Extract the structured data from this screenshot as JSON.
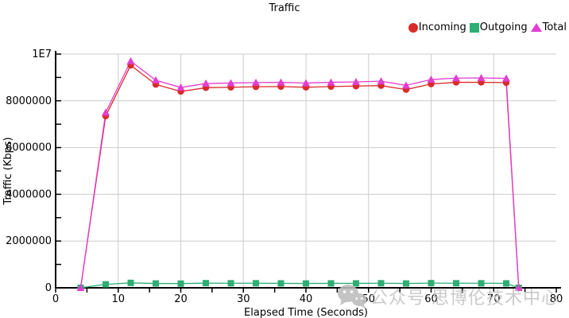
{
  "title": "Traffic",
  "watermark": {
    "text": "公众号·思博伦技术中心",
    "icon": "wechat-logo"
  },
  "chart_data": {
    "type": "line",
    "title": "Traffic",
    "xlabel": "Elapsed Time (Seconds)",
    "ylabel": "Traffic (Kbps)",
    "xlim": [
      0,
      80
    ],
    "ylim": [
      0,
      10000000
    ],
    "x_tick_step": 10,
    "x_minor_tick_step": 5,
    "y_ticks": {
      "values": [
        0,
        2000000,
        4000000,
        6000000,
        8000000,
        10000000
      ],
      "labels": [
        "0",
        "2000000",
        "4000000",
        "6000000",
        "8000000",
        "1E7"
      ]
    },
    "y_minor_tick_step": 1000000,
    "grid": true,
    "grid_color": "#cccccc",
    "axis_color": "#000000",
    "legend_position": "top-right",
    "x": [
      4,
      8,
      12,
      16,
      20,
      24,
      28,
      32,
      36,
      40,
      44,
      48,
      52,
      56,
      60,
      64,
      68,
      72,
      74
    ],
    "series": [
      {
        "name": "Incoming",
        "marker": "circle",
        "color": "#d92b2b",
        "values": [
          0,
          7350000,
          9520000,
          8700000,
          8400000,
          8560000,
          8580000,
          8600000,
          8610000,
          8580000,
          8610000,
          8630000,
          8650000,
          8480000,
          8720000,
          8790000,
          8790000,
          8780000,
          0
        ]
      },
      {
        "name": "Outgoing",
        "marker": "square",
        "color": "#2fae74",
        "values": [
          0,
          150000,
          210000,
          185000,
          180000,
          200000,
          195000,
          195000,
          190000,
          185000,
          190000,
          190000,
          195000,
          185000,
          200000,
          195000,
          195000,
          190000,
          0
        ]
      },
      {
        "name": "Total",
        "marker": "triangle",
        "color": "#e23ed0",
        "values": [
          0,
          7500000,
          9700000,
          8880000,
          8570000,
          8740000,
          8760000,
          8780000,
          8790000,
          8760000,
          8790000,
          8810000,
          8840000,
          8660000,
          8910000,
          8970000,
          8980000,
          8960000,
          0
        ]
      }
    ]
  }
}
